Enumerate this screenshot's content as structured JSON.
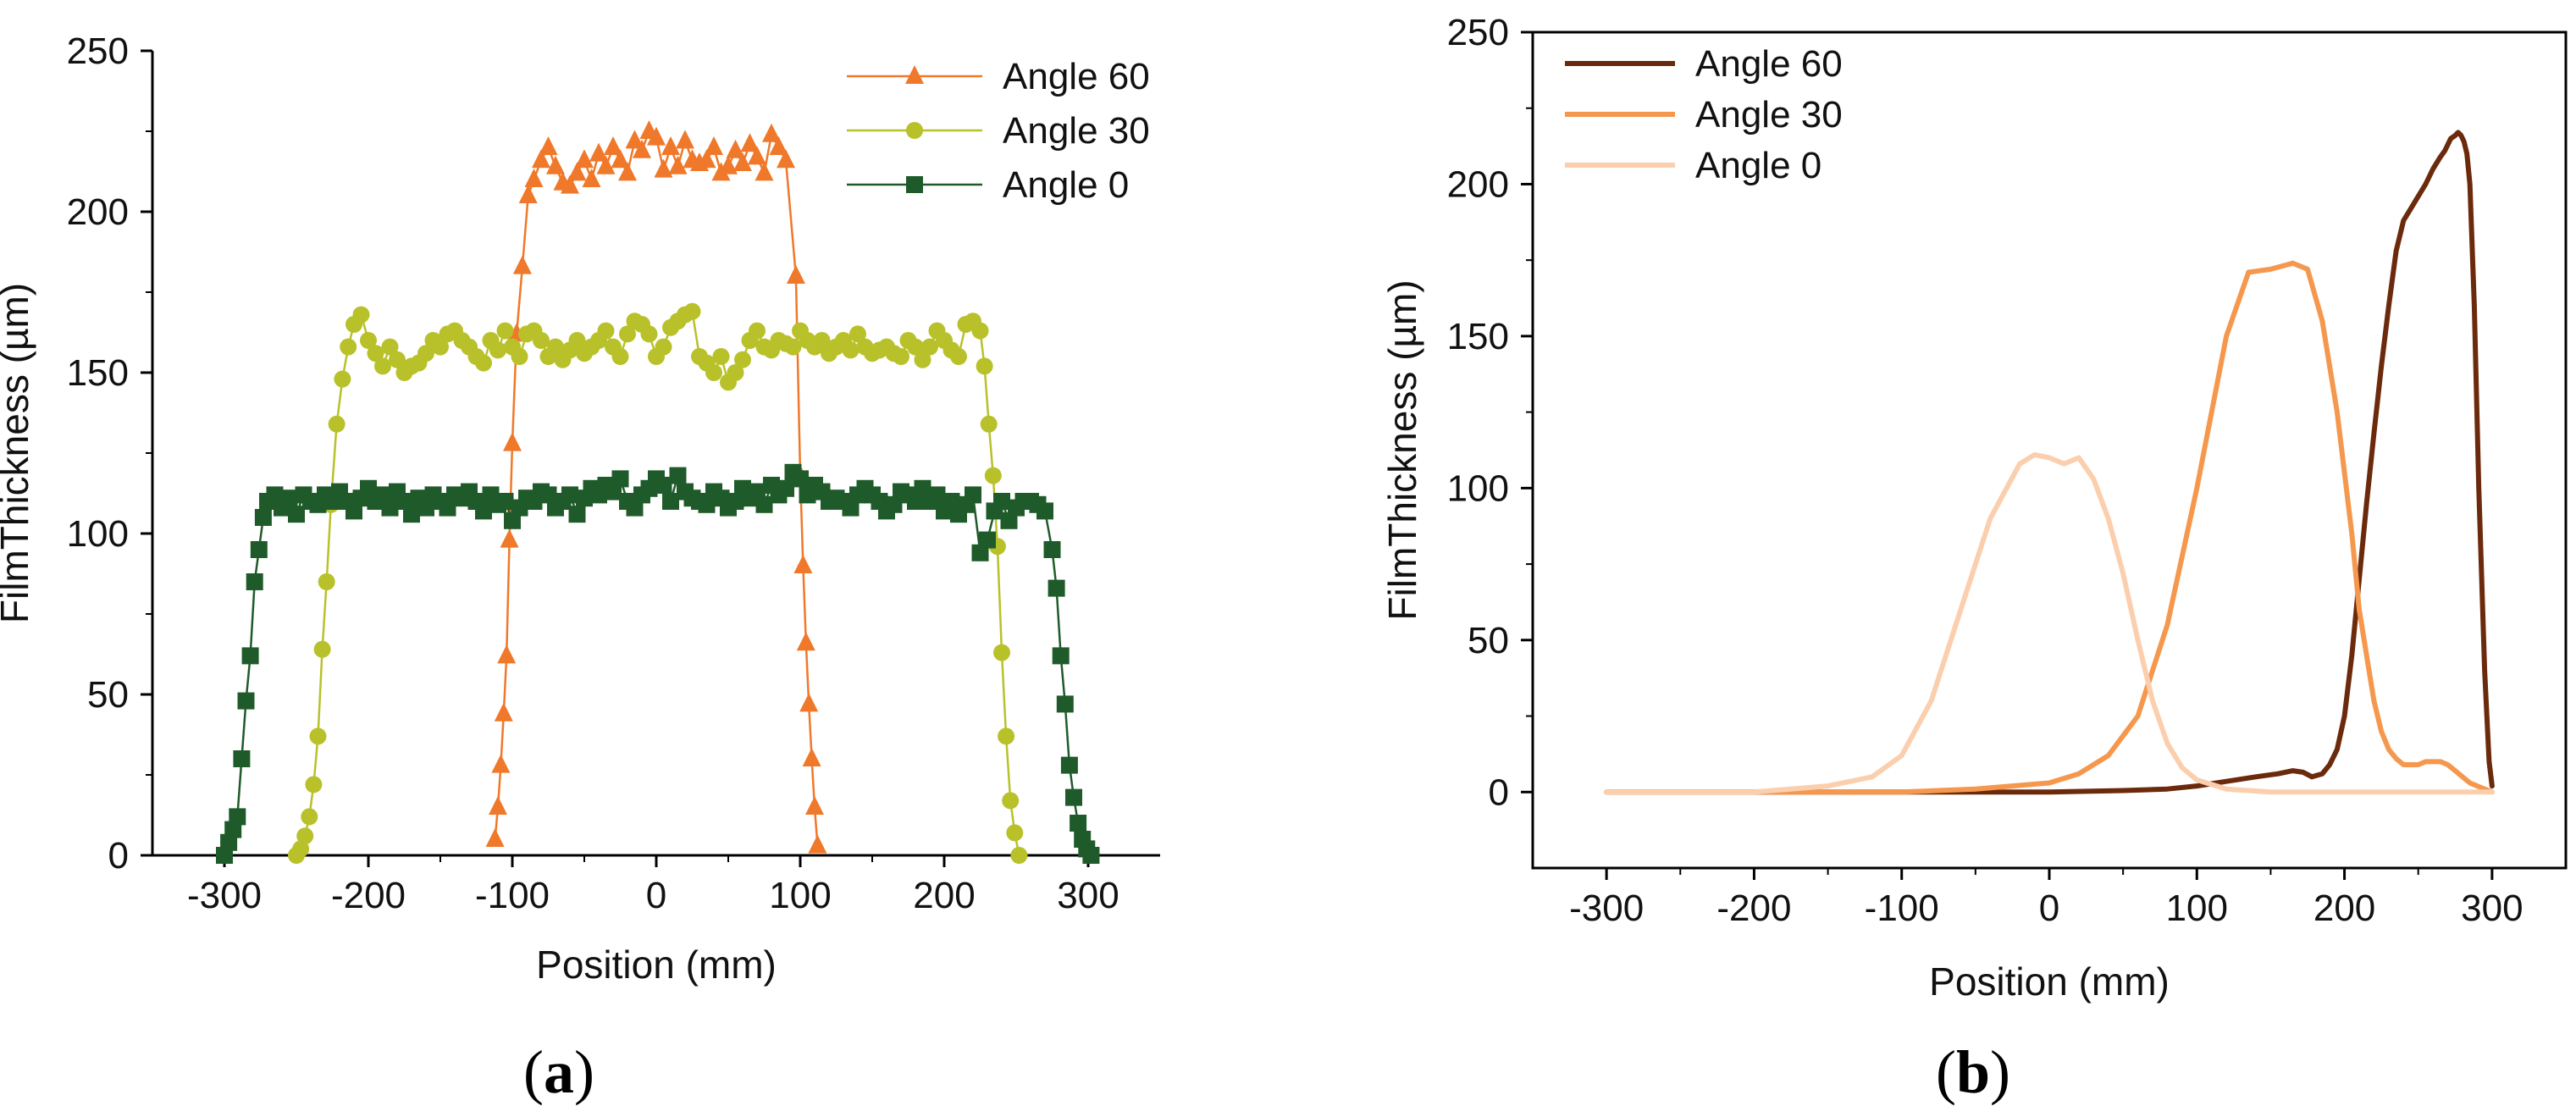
{
  "chart_data": [
    {
      "id": "a",
      "panel_label": "a",
      "type": "line",
      "markers": true,
      "xlabel": "Position (mm)",
      "ylabel": "FilmThickness (µm)",
      "xlim": [
        -350,
        350
      ],
      "ylim": [
        0,
        250
      ],
      "xticks": [
        "-300",
        "-200",
        "-100",
        "0",
        "100",
        "200",
        "300"
      ],
      "yticks": [
        "0",
        "50",
        "100",
        "150",
        "200",
        "250"
      ],
      "legend_position": "top-right",
      "series": [
        {
          "name": "Angle 60",
          "color": "#f0782a",
          "marker": "triangle",
          "x": [
            -112,
            -110,
            -108,
            -106,
            -104,
            -102,
            -100,
            -97,
            -93,
            -89,
            -85,
            -80,
            -75,
            -70,
            -65,
            -60,
            -55,
            -50,
            -45,
            -40,
            -35,
            -30,
            -25,
            -20,
            -15,
            -10,
            -5,
            0,
            5,
            10,
            15,
            20,
            25,
            30,
            35,
            40,
            45,
            50,
            55,
            60,
            65,
            70,
            75,
            80,
            85,
            90,
            97,
            100,
            102,
            104,
            106,
            108,
            110,
            112
          ],
          "y": [
            5,
            15,
            28,
            44,
            62,
            98,
            128,
            162,
            183,
            205,
            210,
            216,
            220,
            214,
            209,
            208,
            212,
            216,
            210,
            218,
            214,
            220,
            216,
            212,
            222,
            219,
            225,
            223,
            213,
            220,
            214,
            222,
            216,
            215,
            216,
            220,
            212,
            214,
            219,
            215,
            221,
            217,
            212,
            224,
            220,
            216,
            180,
            118,
            90,
            66,
            47,
            30,
            15,
            3
          ]
        },
        {
          "name": "Angle 30",
          "color": "#b8c12a",
          "marker": "circle",
          "x": [
            -250,
            -247,
            -244,
            -241,
            -238,
            -235,
            -232,
            -229,
            -226,
            -222,
            -218,
            -214,
            -210,
            -205,
            -200,
            -195,
            -190,
            -185,
            -180,
            -175,
            -170,
            -165,
            -160,
            -155,
            -150,
            -145,
            -140,
            -135,
            -130,
            -125,
            -120,
            -115,
            -110,
            -105,
            -100,
            -95,
            -90,
            -85,
            -80,
            -75,
            -70,
            -65,
            -60,
            -55,
            -50,
            -45,
            -40,
            -35,
            -30,
            -25,
            -20,
            -15,
            -10,
            -5,
            0,
            5,
            10,
            15,
            20,
            25,
            30,
            35,
            40,
            45,
            50,
            55,
            60,
            65,
            70,
            75,
            80,
            85,
            90,
            95,
            100,
            105,
            110,
            115,
            120,
            125,
            130,
            135,
            140,
            145,
            150,
            155,
            160,
            165,
            170,
            175,
            180,
            185,
            190,
            195,
            200,
            205,
            210,
            215,
            220,
            225,
            228,
            231,
            234,
            237,
            240,
            243,
            246,
            249,
            252
          ],
          "y": [
            0,
            2,
            6,
            12,
            22,
            37,
            64,
            85,
            109,
            134,
            148,
            158,
            165,
            168,
            160,
            156,
            152,
            158,
            154,
            150,
            152,
            153,
            156,
            160,
            158,
            162,
            163,
            160,
            158,
            155,
            153,
            160,
            157,
            163,
            158,
            155,
            162,
            163,
            160,
            155,
            158,
            154,
            157,
            160,
            156,
            158,
            160,
            163,
            158,
            155,
            162,
            166,
            165,
            162,
            155,
            158,
            164,
            166,
            168,
            169,
            155,
            153,
            150,
            155,
            147,
            150,
            154,
            160,
            163,
            158,
            157,
            160,
            159,
            158,
            163,
            160,
            158,
            160,
            156,
            158,
            160,
            157,
            162,
            158,
            156,
            157,
            158,
            156,
            155,
            160,
            158,
            154,
            158,
            163,
            160,
            157,
            155,
            165,
            166,
            163,
            152,
            134,
            118,
            96,
            63,
            37,
            17,
            7,
            0
          ]
        },
        {
          "name": "Angle 0",
          "color": "#1f5b2a",
          "marker": "square",
          "x": [
            -300,
            -297,
            -294,
            -291,
            -288,
            -285,
            -282,
            -279,
            -276,
            -273,
            -270,
            -265,
            -260,
            -255,
            -250,
            -245,
            -240,
            -235,
            -230,
            -225,
            -220,
            -215,
            -210,
            -205,
            -200,
            -195,
            -190,
            -185,
            -180,
            -175,
            -170,
            -165,
            -160,
            -155,
            -150,
            -145,
            -140,
            -135,
            -130,
            -125,
            -120,
            -115,
            -110,
            -105,
            -100,
            -95,
            -90,
            -85,
            -80,
            -75,
            -70,
            -65,
            -60,
            -55,
            -50,
            -45,
            -40,
            -35,
            -30,
            -25,
            -20,
            -15,
            -10,
            -5,
            0,
            5,
            10,
            15,
            20,
            25,
            30,
            35,
            40,
            45,
            50,
            55,
            60,
            65,
            70,
            75,
            80,
            85,
            90,
            95,
            100,
            105,
            110,
            115,
            120,
            125,
            130,
            135,
            140,
            145,
            150,
            155,
            160,
            165,
            170,
            175,
            180,
            185,
            190,
            195,
            200,
            205,
            210,
            215,
            220,
            225,
            230,
            235,
            240,
            245,
            250,
            255,
            260,
            265,
            270,
            275,
            278,
            281,
            284,
            287,
            290,
            293,
            296,
            299,
            302
          ],
          "y": [
            0,
            4,
            8,
            12,
            30,
            48,
            62,
            85,
            95,
            105,
            110,
            112,
            108,
            111,
            106,
            112,
            110,
            109,
            112,
            110,
            113,
            110,
            107,
            111,
            114,
            110,
            112,
            108,
            113,
            110,
            106,
            111,
            108,
            112,
            110,
            108,
            112,
            111,
            113,
            110,
            107,
            112,
            109,
            110,
            104,
            108,
            111,
            110,
            113,
            112,
            108,
            110,
            112,
            106,
            111,
            114,
            112,
            115,
            113,
            117,
            110,
            108,
            112,
            114,
            117,
            115,
            110,
            118,
            113,
            111,
            110,
            109,
            113,
            111,
            108,
            110,
            114,
            111,
            113,
            109,
            115,
            112,
            114,
            119,
            117,
            112,
            115,
            113,
            110,
            111,
            110,
            108,
            112,
            114,
            112,
            110,
            107,
            109,
            113,
            112,
            110,
            114,
            110,
            112,
            107,
            110,
            106,
            109,
            112,
            94,
            98,
            107,
            110,
            104,
            108,
            110,
            110,
            109,
            107,
            95,
            83,
            62,
            47,
            28,
            18,
            10,
            5,
            2,
            0
          ]
        }
      ]
    },
    {
      "id": "b",
      "panel_label": "b",
      "type": "line",
      "markers": false,
      "xlabel": "Position (mm)",
      "ylabel": "FilmThickness (µm)",
      "xlim": [
        -350,
        350
      ],
      "ylim": [
        -25,
        250
      ],
      "xticks": [
        "-300",
        "-200",
        "-100",
        "0",
        "100",
        "200",
        "300"
      ],
      "yticks": [
        "0",
        "50",
        "100",
        "150",
        "200",
        "250"
      ],
      "legend_position": "top-left",
      "series": [
        {
          "name": "Angle 60",
          "color": "#6b2a0c",
          "x": [
            -300,
            -200,
            -150,
            -100,
            -50,
            0,
            50,
            80,
            100,
            120,
            140,
            155,
            165,
            172,
            178,
            185,
            190,
            195,
            200,
            205,
            210,
            215,
            220,
            225,
            230,
            235,
            240,
            245,
            250,
            255,
            260,
            265,
            268,
            272,
            275,
            277,
            279,
            281,
            283,
            285,
            288,
            291,
            295,
            298,
            300
          ],
          "y": [
            0,
            0,
            0,
            0,
            0,
            0,
            0.5,
            1,
            2,
            3.5,
            5,
            6,
            7,
            6.5,
            5,
            6,
            9,
            14,
            25,
            45,
            70,
            95,
            118,
            140,
            160,
            178,
            188,
            192,
            196,
            200,
            205,
            209,
            211,
            215,
            216,
            217,
            216,
            214,
            210,
            200,
            160,
            100,
            40,
            10,
            2
          ],
          "orientation": "closed-curve"
        },
        {
          "name": "Angle 30",
          "color": "#f5984e",
          "x": [
            -300,
            -200,
            -100,
            -50,
            0,
            20,
            40,
            60,
            80,
            100,
            120,
            135,
            150,
            165,
            175,
            185,
            195,
            205,
            210,
            215,
            220,
            225,
            230,
            235,
            240,
            245,
            250,
            255,
            260,
            265,
            270,
            275,
            280,
            285,
            290,
            300
          ],
          "y": [
            0,
            0,
            0,
            1,
            3,
            6,
            12,
            25,
            55,
            100,
            150,
            171,
            172,
            174,
            172,
            155,
            125,
            85,
            60,
            45,
            30,
            20,
            14,
            11,
            9,
            9,
            9,
            10,
            10,
            10,
            9,
            7,
            5,
            3,
            2,
            0
          ]
        },
        {
          "name": "Angle 0",
          "color": "#fbcfae",
          "x": [
            -300,
            -200,
            -150,
            -120,
            -100,
            -80,
            -60,
            -40,
            -20,
            -10,
            0,
            10,
            20,
            30,
            40,
            50,
            60,
            70,
            80,
            90,
            100,
            120,
            150,
            200,
            300
          ],
          "y": [
            0,
            0,
            2,
            5,
            12,
            30,
            60,
            90,
            108,
            111,
            110,
            108,
            110,
            103,
            90,
            72,
            50,
            30,
            16,
            8,
            4,
            1,
            0,
            0,
            0
          ]
        }
      ]
    }
  ]
}
